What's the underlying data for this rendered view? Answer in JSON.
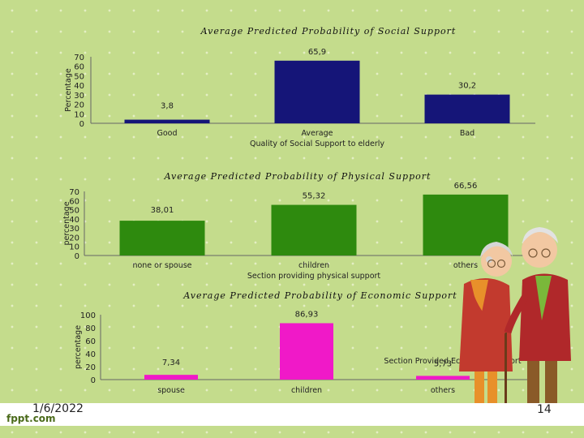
{
  "footer": {
    "date": "1/6/2022",
    "logo": "fppt.com",
    "page": "14"
  },
  "illustration": "elderly-couple",
  "colors": {
    "social": "#151578",
    "physical": "#2e8a0e",
    "economic": "#f019c8"
  },
  "chart_data": [
    {
      "type": "bar",
      "title": "Average Predicted Probability of Social Support",
      "categories": [
        "Good",
        "Average",
        "Bad"
      ],
      "values": [
        3.8,
        65.9,
        30.2
      ],
      "value_labels": [
        "3,8",
        "65,9",
        "30,2"
      ],
      "ylabel": "Percentage",
      "xlabel": "Quality of Social Support to elderly",
      "ylim": [
        0,
        70
      ],
      "yticks": [
        0,
        10,
        20,
        30,
        40,
        50,
        60,
        70
      ]
    },
    {
      "type": "bar",
      "title": "Average Predicted Probability of Physical Support",
      "categories": [
        "none or spouse",
        "children",
        "others"
      ],
      "values": [
        38.01,
        55.32,
        66.56
      ],
      "value_labels": [
        "38,01",
        "55,32",
        "66,56"
      ],
      "ylabel": "percentage",
      "xlabel": "Section providing physical support",
      "ylim": [
        0,
        70
      ],
      "yticks": [
        0,
        10,
        20,
        30,
        40,
        50,
        60,
        70
      ]
    },
    {
      "type": "bar",
      "title": "Average Predicted Probability of Economic Support",
      "categories": [
        "spouse",
        "children",
        "others"
      ],
      "values": [
        7.34,
        86.93,
        5.73
      ],
      "value_labels": [
        "7,34",
        "86,93",
        "5,73"
      ],
      "ylabel": "percentage",
      "xlabel": "Section Provided Economic Support",
      "ylim": [
        0,
        100
      ],
      "yticks": [
        0,
        20,
        40,
        60,
        80,
        100
      ]
    }
  ]
}
